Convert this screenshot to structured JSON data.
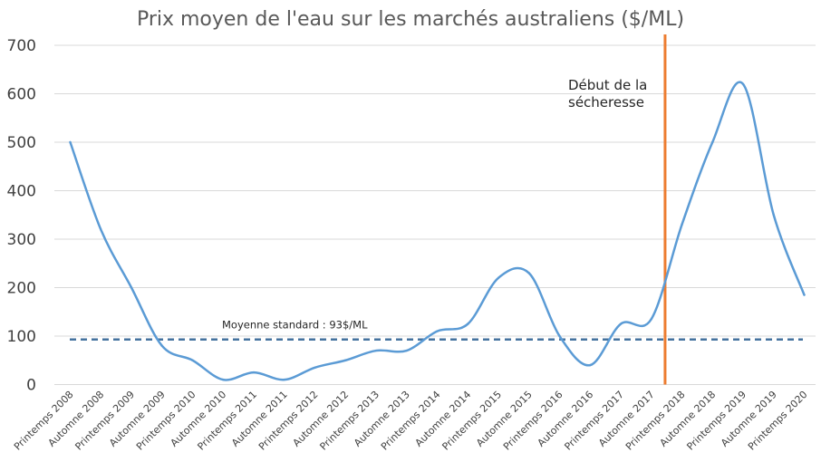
{
  "chart_data": {
    "type": "line",
    "title": "Prix moyen de l'eau sur les marchés australiens ($/ML)",
    "xlabel": "",
    "ylabel": "",
    "ylim": [
      0,
      700
    ],
    "yticks": [
      0,
      100,
      200,
      300,
      400,
      500,
      600,
      700
    ],
    "grid": true,
    "categories": [
      "Printemps 2008",
      "Automne 2008",
      "Printemps 2009",
      "Automne 2009",
      "Printemps 2010",
      "Automne 2010",
      "Printemps 2011",
      "Automne 2011",
      "Printemps 2012",
      "Automne 2012",
      "Printemps 2013",
      "Automne 2013",
      "Printemps 2014",
      "Automne 2014",
      "Printemps 2015",
      "Automne 2015",
      "Printemps 2016",
      "Automne 2016",
      "Printemps 2017",
      "Automne 2017",
      "Printemps 2018",
      "Automne 2018",
      "Printemps 2019",
      "Automne 2019",
      "Printemps 2020"
    ],
    "series": [
      {
        "values": [
          500,
          320,
          200,
          80,
          50,
          10,
          25,
          10,
          35,
          50,
          70,
          70,
          110,
          125,
          220,
          230,
          100,
          40,
          125,
          135,
          330,
          500,
          620,
          350,
          185
        ],
        "color": "#5b9bd5"
      }
    ],
    "reference_line": {
      "value": 93,
      "label": "Moyenne standard : 93$/ML",
      "color": "#44729e"
    },
    "annotation": {
      "lines": [
        "Début de la",
        "sécheresse"
      ],
      "category_position": 19.45,
      "color": "#ed7d31"
    }
  }
}
